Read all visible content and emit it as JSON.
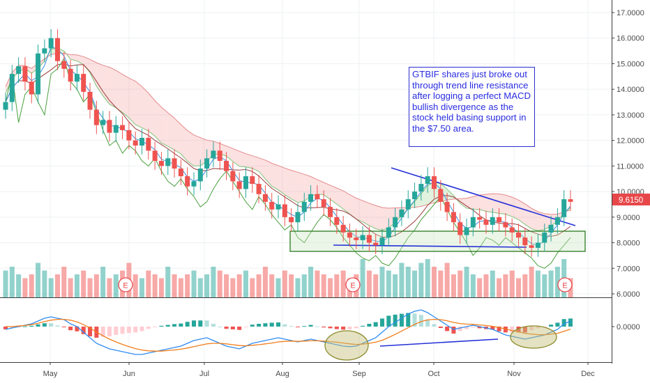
{
  "chart_data": {
    "type": "candlestick",
    "ticker": "GTBIF",
    "price_axis": {
      "ticks": [
        "17.0000",
        "16.0000",
        "15.0000",
        "14.0000",
        "13.0000",
        "12.0000",
        "11.0000",
        "10.0000",
        "9.0000",
        "8.0000",
        "7.0000",
        "6.0000"
      ],
      "range": [
        5.85,
        17.35
      ]
    },
    "macd_axis": {
      "ticks": [
        "0.0000"
      ]
    },
    "x_axis": {
      "labels": [
        "May",
        "Jun",
        "Jul",
        "Aug",
        "Sep",
        "Oct",
        "Nov",
        "Dec"
      ]
    },
    "last_price": "9.6150",
    "annotation": "GTBIF shares just broke out through trend line resistance after logging a perfect MACD bullish divergence as the stock held basing support in the $7.50 area.",
    "earnings_markers": [
      "E",
      "E",
      "E"
    ],
    "close_approx": [
      13.5,
      14.6,
      14.9,
      14.3,
      13.8,
      15.4,
      15.6,
      16.0,
      15.1,
      14.8,
      14.3,
      14.6,
      13.9,
      13.2,
      12.6,
      12.8,
      12.3,
      12.6,
      12.4,
      12.0,
      11.8,
      12.1,
      11.6,
      11.2,
      11.0,
      11.3,
      10.9,
      10.6,
      10.2,
      10.4,
      10.9,
      11.3,
      11.6,
      11.2,
      10.8,
      10.4,
      10.1,
      10.6,
      10.3,
      9.9,
      9.6,
      9.3,
      9.5,
      9.0,
      8.8,
      9.2,
      9.6,
      9.9,
      9.7,
      9.4,
      9.0,
      8.7,
      8.4,
      8.2,
      8.1,
      8.3,
      8.0,
      7.9,
      8.2,
      8.6,
      9.0,
      9.3,
      9.7,
      10.0,
      10.3,
      10.6,
      10.1,
      9.6,
      9.2,
      8.8,
      8.3,
      8.6,
      9.0,
      8.9,
      8.7,
      9.0,
      8.8,
      8.6,
      8.4,
      8.2,
      7.9,
      7.8,
      8.0,
      8.4,
      8.7,
      9.0,
      9.7,
      9.6
    ],
    "volume_approx": [
      0.7,
      0.8,
      0.6,
      0.5,
      0.6,
      0.9,
      0.7,
      0.5,
      0.6,
      0.8,
      0.5,
      0.6,
      0.7,
      0.5,
      0.6,
      0.8,
      0.5,
      0.6,
      0.7,
      0.9,
      0.6,
      0.5,
      0.7,
      0.6,
      0.5,
      0.8,
      0.6,
      0.5,
      0.6,
      0.7,
      0.5,
      0.6,
      0.8,
      0.7,
      0.6,
      0.5,
      0.6,
      0.7,
      0.5,
      0.6,
      0.8,
      0.6,
      0.5,
      0.7,
      0.6,
      0.5,
      0.6,
      0.8,
      0.7,
      0.6,
      0.5,
      0.6,
      0.7,
      0.5,
      0.6,
      1.0,
      0.7,
      0.6,
      0.8,
      0.7,
      0.6,
      0.9,
      0.8,
      0.7,
      0.9,
      1.0,
      0.8,
      0.7,
      0.9,
      0.6,
      0.7,
      0.8,
      0.6,
      0.5,
      0.6,
      0.7,
      0.5,
      0.6,
      0.7,
      0.5,
      0.6,
      0.8,
      0.7,
      0.6,
      0.7,
      0.8,
      1.0,
      0.5
    ],
    "macd_approx": [
      -0.1,
      -0.05,
      0.0,
      0.05,
      0.1,
      0.2,
      0.3,
      0.35,
      0.3,
      0.25,
      0.1,
      0.0,
      -0.2,
      -0.4,
      -0.6,
      -0.7,
      -0.8,
      -0.85,
      -0.9,
      -0.95,
      -1.0,
      -1.0,
      -0.95,
      -0.9,
      -0.85,
      -0.8,
      -0.75,
      -0.7,
      -0.6,
      -0.5,
      -0.45,
      -0.4,
      -0.5,
      -0.6,
      -0.7,
      -0.75,
      -0.8,
      -0.7,
      -0.6,
      -0.55,
      -0.5,
      -0.45,
      -0.4,
      -0.45,
      -0.5,
      -0.55,
      -0.5,
      -0.45,
      -0.5,
      -0.55,
      -0.6,
      -0.65,
      -0.7,
      -0.72,
      -0.7,
      -0.6,
      -0.5,
      -0.4,
      -0.2,
      0.0,
      0.15,
      0.3,
      0.45,
      0.55,
      0.6,
      0.5,
      0.35,
      0.2,
      0.05,
      -0.1,
      -0.05,
      0.0,
      0.05,
      0.0,
      -0.05,
      -0.1,
      -0.2,
      -0.3,
      -0.35,
      -0.4,
      -0.45,
      -0.4,
      -0.35,
      -0.3,
      -0.2,
      -0.1,
      0.1,
      0.2
    ],
    "signal_approx": [
      0.0,
      0.0,
      0.02,
      0.04,
      0.07,
      0.12,
      0.18,
      0.23,
      0.26,
      0.26,
      0.23,
      0.17,
      0.07,
      -0.05,
      -0.2,
      -0.33,
      -0.45,
      -0.55,
      -0.64,
      -0.72,
      -0.79,
      -0.84,
      -0.87,
      -0.88,
      -0.88,
      -0.86,
      -0.84,
      -0.81,
      -0.77,
      -0.72,
      -0.67,
      -0.62,
      -0.6,
      -0.6,
      -0.62,
      -0.65,
      -0.68,
      -0.69,
      -0.67,
      -0.65,
      -0.62,
      -0.59,
      -0.55,
      -0.53,
      -0.52,
      -0.53,
      -0.52,
      -0.51,
      -0.51,
      -0.52,
      -0.54,
      -0.56,
      -0.59,
      -0.62,
      -0.64,
      -0.63,
      -0.6,
      -0.56,
      -0.49,
      -0.39,
      -0.28,
      -0.16,
      -0.04,
      0.08,
      0.18,
      0.24,
      0.26,
      0.25,
      0.21,
      0.15,
      0.11,
      0.09,
      0.08,
      0.06,
      0.04,
      0.01,
      -0.03,
      -0.09,
      -0.14,
      -0.19,
      -0.24,
      -0.27,
      -0.29,
      -0.29,
      -0.27,
      -0.24,
      -0.17,
      -0.09
    ]
  }
}
